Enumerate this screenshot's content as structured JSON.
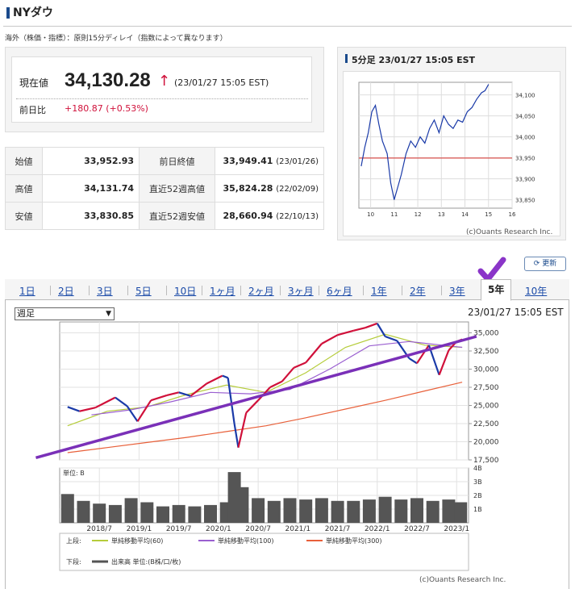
{
  "page": {
    "title": "NYダウ",
    "note": "海外（株価・指標）：原則15分ディレイ（指数によって異なります）"
  },
  "quote": {
    "price_label": "現在値",
    "price": "34,130.28",
    "arrow": "↑",
    "time": "(23/01/27 15:05 EST)",
    "change_label": "前日比",
    "change": "+180.87 (+0.53%)",
    "up_color": "#d0103a"
  },
  "stats": [
    {
      "label1": "始値",
      "value1": "33,952.93",
      "label2": "前日終値",
      "value2": "33,949.41",
      "note2": "(23/01/26)"
    },
    {
      "label1": "高値",
      "value1": "34,131.74",
      "label2": "直近52週高値",
      "value2": "35,824.28",
      "note2": "(22/02/09)"
    },
    {
      "label1": "安値",
      "value1": "33,830.85",
      "label2": "直近52週安値",
      "value2": "28,660.94",
      "note2": "(22/10/13)"
    }
  ],
  "intraday": {
    "title": "5分足 23/01/27 15:05 EST",
    "credit": "(c)Ouants Research Inc."
  },
  "refresh_label": "更新",
  "tabs": [
    "1日",
    "2日",
    "3日",
    "5日",
    "10日",
    "1ヶ月",
    "2ヶ月",
    "3ヶ月",
    "6ヶ月",
    "1年",
    "2年",
    "3年",
    "5年",
    "10年"
  ],
  "active_tab": "5年",
  "chart_controls": {
    "period_select": "週足",
    "time": "23/01/27 15:05 EST",
    "credit": "(c)Ouants Research Inc."
  },
  "legend": {
    "upper_label": "上段:",
    "lower_label": "下段:",
    "ma60": "単純移動平均(60)",
    "ma100": "単純移動平均(100)",
    "ma300": "単純移動平均(300)",
    "volume": "出来高 単位:(B株/口/枚)",
    "volume_unit_label": "単位: B"
  },
  "colors": {
    "candle_up": "#d0103a",
    "candle_down": "#1a3aa8",
    "ma60": "#b5cc3a",
    "ma100": "#9a5fd0",
    "ma300": "#e8603a",
    "trendline": "#7a30b8",
    "prev_close_line": "#d9534f",
    "brand": "#1a4a8c"
  },
  "chart_data": [
    {
      "type": "line",
      "title": "5分足 23/01/27 15:05 EST",
      "x_ticks": [
        "10",
        "11",
        "12",
        "13",
        "14",
        "15",
        "16"
      ],
      "y_ticks": [
        "34,100",
        "34,050",
        "34,000",
        "33,950",
        "33,900",
        "33,850"
      ],
      "ylim": [
        33830,
        34130
      ],
      "xlim": [
        9.5,
        16
      ],
      "reference_line": 33949.41,
      "series": [
        {
          "x": [
            9.6,
            9.75,
            9.9,
            10.05,
            10.2,
            10.35,
            10.5,
            10.7,
            10.85,
            11.0,
            11.15,
            11.3,
            11.5,
            11.7,
            11.9,
            12.1,
            12.3,
            12.5,
            12.7,
            12.9,
            13.1,
            13.3,
            13.5,
            13.7,
            13.9,
            14.1,
            14.3,
            14.5,
            14.7,
            14.85,
            15.0
          ],
          "y": [
            33930,
            33975,
            34010,
            34060,
            34075,
            34030,
            33990,
            33960,
            33890,
            33850,
            33880,
            33910,
            33960,
            33990,
            33975,
            34000,
            33985,
            34020,
            34040,
            34010,
            34050,
            34030,
            34020,
            34040,
            34035,
            34060,
            34070,
            34090,
            34105,
            34110,
            34125
          ]
        }
      ]
    },
    {
      "type": "line",
      "title": "",
      "x_ticks": [
        "2018/7",
        "2019/1",
        "2019/7",
        "2020/1",
        "2020/7",
        "2021/1",
        "2021/7",
        "2022/1",
        "2022/7",
        "2023/1"
      ],
      "y_ticks": [
        "35,000",
        "32,500",
        "30,000",
        "27,500",
        "25,000",
        "22,500",
        "20,000",
        "17,500"
      ],
      "ylim": [
        17500,
        36500
      ],
      "xlim": [
        2018.0,
        2023.15
      ],
      "series": [
        {
          "name": "単純移動平均(60)",
          "x": [
            2018.1,
            2018.6,
            2019.1,
            2019.6,
            2020.1,
            2020.6,
            2021.1,
            2021.6,
            2022.1,
            2022.6,
            2023.07
          ],
          "y": [
            22200,
            24200,
            24800,
            26500,
            27800,
            26800,
            29500,
            33000,
            34800,
            33300,
            33000
          ]
        },
        {
          "name": "単純移動平均(100)",
          "x": [
            2018.4,
            2018.9,
            2019.4,
            2019.9,
            2020.4,
            2020.9,
            2021.4,
            2021.9,
            2022.4,
            2022.9,
            2023.07
          ],
          "y": [
            23700,
            24400,
            25500,
            26800,
            26600,
            27200,
            30000,
            33200,
            33800,
            33200,
            33000
          ]
        },
        {
          "name": "単純移動平均(300)",
          "x": [
            2018.1,
            2018.6,
            2019.1,
            2019.6,
            2020.1,
            2020.6,
            2021.1,
            2021.6,
            2022.1,
            2022.6,
            2023.07
          ],
          "y": [
            18500,
            19200,
            19900,
            20600,
            21400,
            22200,
            23300,
            24500,
            25700,
            27000,
            28200
          ]
        },
        {
          "name": "NYダウ 週足",
          "x": [
            2018.1,
            2018.25,
            2018.45,
            2018.7,
            2018.85,
            2018.98,
            2019.15,
            2019.35,
            2019.5,
            2019.65,
            2019.85,
            2020.05,
            2020.12,
            2020.2,
            2020.25,
            2020.35,
            2020.5,
            2020.65,
            2020.8,
            2020.95,
            2021.1,
            2021.3,
            2021.5,
            2021.7,
            2021.85,
            2022.0,
            2022.1,
            2022.25,
            2022.4,
            2022.5,
            2022.65,
            2022.78,
            2022.9,
            2023.0,
            2023.07
          ],
          "y": [
            24800,
            24200,
            24700,
            26100,
            24900,
            22800,
            25700,
            26400,
            26800,
            26300,
            28000,
            29100,
            28800,
            22500,
            19200,
            24000,
            25700,
            27500,
            28300,
            30200,
            30900,
            33500,
            34700,
            35300,
            35700,
            36300,
            34500,
            33900,
            31500,
            30800,
            33300,
            29200,
            32600,
            33800,
            34100
          ]
        }
      ]
    },
    {
      "type": "bar",
      "title": "",
      "y_ticks": [
        "4B",
        "3B",
        "2B",
        "1B"
      ],
      "ylim": [
        0,
        4
      ],
      "x": [
        2018.1,
        2018.3,
        2018.5,
        2018.7,
        2018.9,
        2019.1,
        2019.3,
        2019.5,
        2019.7,
        2019.9,
        2020.1,
        2020.2,
        2020.3,
        2020.5,
        2020.7,
        2020.9,
        2021.1,
        2021.3,
        2021.5,
        2021.7,
        2021.9,
        2022.1,
        2022.3,
        2022.5,
        2022.7,
        2022.9,
        2023.05
      ],
      "values": [
        2.1,
        1.6,
        1.4,
        1.3,
        1.8,
        1.5,
        1.2,
        1.3,
        1.2,
        1.3,
        1.5,
        3.7,
        2.6,
        1.8,
        1.6,
        1.8,
        1.7,
        1.8,
        1.6,
        1.6,
        1.7,
        1.9,
        1.7,
        1.8,
        1.6,
        1.7,
        1.5
      ]
    }
  ]
}
